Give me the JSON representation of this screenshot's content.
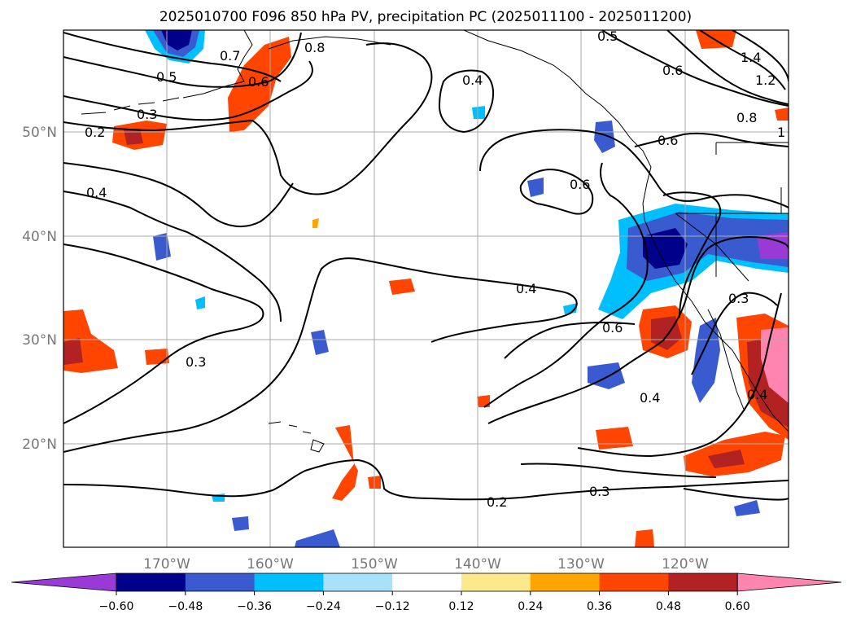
{
  "title": "2025010700 F096 850 hPa PV, precipitation PC (2025011100 - 2025011200)",
  "map": {
    "lat_labels": [
      "50°N",
      "40°N",
      "30°N",
      "20°N"
    ],
    "lon_labels": [
      "170°W",
      "160°W",
      "150°W",
      "140°W",
      "130°W",
      "120°W"
    ],
    "contour_labels": [
      "0.7",
      "0.8",
      "0.5",
      "0.6",
      "0.3",
      "0.2",
      "0.4",
      "0.4",
      "0.5",
      "0.6",
      "1.4",
      "1.2",
      "0.8",
      "1",
      "0.6",
      "0.6",
      "0.4",
      "0.6",
      "0.3",
      "0.3",
      "0.4",
      "0.4",
      "0.2",
      "0.3"
    ]
  },
  "colorbar": {
    "ticks": [
      "−0.60",
      "−0.48",
      "−0.36",
      "−0.24",
      "−0.12",
      "0.12",
      "0.24",
      "0.36",
      "0.48",
      "0.60"
    ],
    "colors": [
      "#9a3ad6",
      "#00008b",
      "#3a5bd0",
      "#00bfff",
      "#a8e2fa",
      "#ffffff",
      "#fce98b",
      "#ffa500",
      "#ff4500",
      "#b22222",
      "#ff85b0"
    ]
  }
}
